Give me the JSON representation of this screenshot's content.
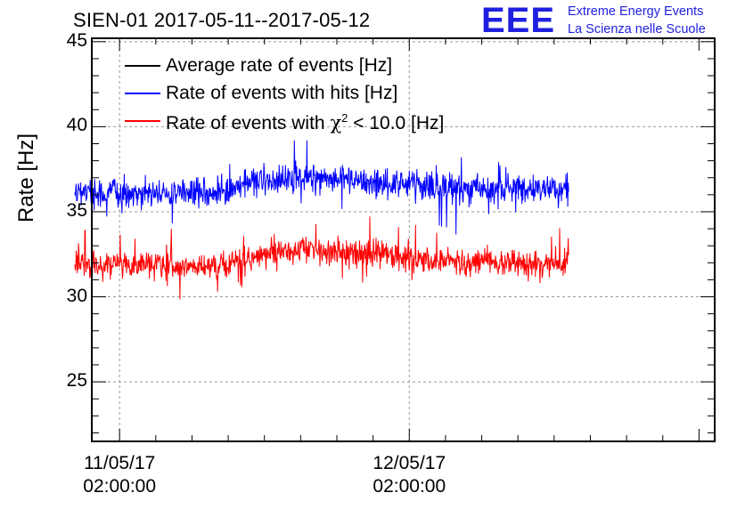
{
  "chart_data": {
    "type": "line",
    "title": "SIEN-01 2017-05-11--2017-05-12",
    "xlabel": "",
    "ylabel": "Rate [Hz]",
    "ylim": [
      21.5,
      45.2
    ],
    "yticks": [
      25,
      30,
      35,
      40,
      45
    ],
    "ytick_labels": [
      "25",
      "30",
      "35",
      "40",
      "45"
    ],
    "x_time_window_hours": [
      -2.3,
      49.3
    ],
    "xticks": [
      {
        "hours": 0,
        "label_date": "11/05/17",
        "label_time": "02:00:00"
      },
      {
        "hours": 24,
        "label_date": "12/05/17",
        "label_time": "02:00:00"
      }
    ],
    "grid": true,
    "legend_position": "top-left",
    "series": [
      {
        "name": "Average rate of events [Hz]",
        "color": "#000000",
        "style": "line",
        "values": []
      },
      {
        "name": "Rate of events with hits [Hz]",
        "color": "#0000ff",
        "style": "noisy-line",
        "x_range_hours": [
          -3.7,
          37.2
        ],
        "trend": [
          {
            "x": -3.7,
            "y": 36.1
          },
          {
            "x": 0,
            "y": 36.1
          },
          {
            "x": 4,
            "y": 36.0
          },
          {
            "x": 8,
            "y": 36.0
          },
          {
            "x": 12,
            "y": 36.9
          },
          {
            "x": 16,
            "y": 37.0
          },
          {
            "x": 20,
            "y": 36.8
          },
          {
            "x": 24,
            "y": 36.5
          },
          {
            "x": 28,
            "y": 36.3
          },
          {
            "x": 32,
            "y": 36.3
          },
          {
            "x": 37.2,
            "y": 36.4
          }
        ],
        "noise_amplitude": 0.8,
        "min": 33.2,
        "max": 39.2
      },
      {
        "name": "Rate of events with χ² < 10.0 [Hz]",
        "color": "#ff0000",
        "style": "noisy-line",
        "x_range_hours": [
          -3.7,
          37.2
        ],
        "trend": [
          {
            "x": -3.7,
            "y": 31.9
          },
          {
            "x": 0,
            "y": 31.9
          },
          {
            "x": 4,
            "y": 31.8
          },
          {
            "x": 8,
            "y": 31.7
          },
          {
            "x": 12,
            "y": 32.5
          },
          {
            "x": 16,
            "y": 32.8
          },
          {
            "x": 20,
            "y": 32.6
          },
          {
            "x": 24,
            "y": 32.3
          },
          {
            "x": 28,
            "y": 32.1
          },
          {
            "x": 32,
            "y": 32.0
          },
          {
            "x": 37.2,
            "y": 32.0
          }
        ],
        "noise_amplitude": 0.75,
        "min": 29.5,
        "max": 34.8
      }
    ]
  },
  "legend": {
    "black_label": "Average rate of events [Hz]",
    "blue_label": "Rate of events with hits [Hz]",
    "red_label_prefix": "Rate of events with ",
    "red_label_chi": "χ",
    "red_label_sup": "2",
    "red_label_suffix": " < 10.0 [Hz]"
  },
  "logo": {
    "mark": "EEE",
    "line1": "Extreme Energy Events",
    "line2": "La Scienza nelle Scuole",
    "color": "#1f1fe0"
  }
}
